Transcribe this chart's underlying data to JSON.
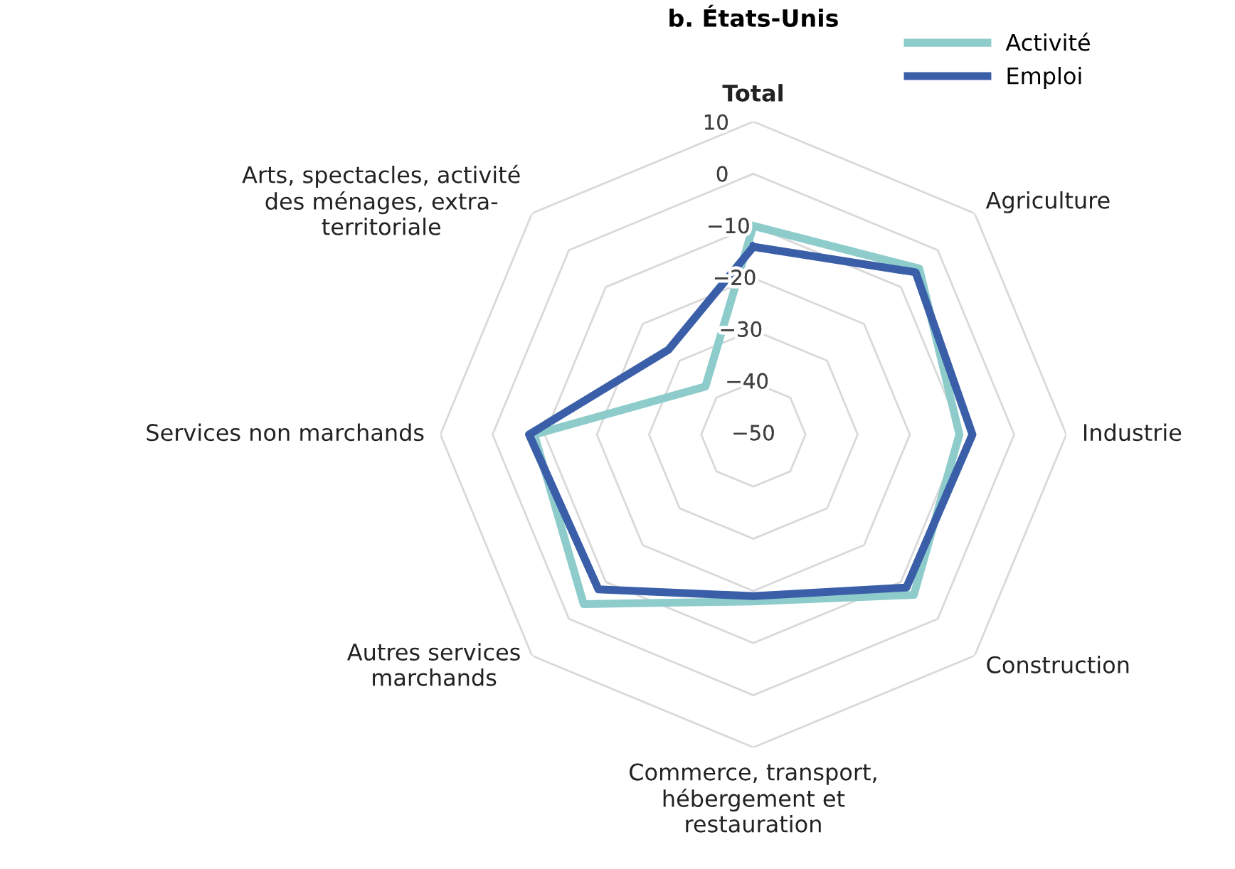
{
  "chart_data": {
    "type": "radar",
    "title": "b. États-Unis",
    "categories": [
      "Total",
      "Agriculture",
      "Industrie",
      "Construction",
      "Commerce, transport,\nhébergement et\nrestauration",
      "Autres services\nmarchands",
      "Services non marchands",
      "Arts, spectacles, activité\ndes ménages, extra-\nterritoriale"
    ],
    "series": [
      {
        "name": "Activité",
        "color": "#8ecccc",
        "values": [
          -10,
          -5,
          -10.5,
          -6.5,
          -18,
          -4,
          -8,
          -37
        ]
      },
      {
        "name": "Emploi",
        "color": "#3a5fa8",
        "values": [
          -14,
          -6,
          -8,
          -8.5,
          -19,
          -8,
          -7,
          -27
        ]
      }
    ],
    "ylim": [
      -50,
      10
    ],
    "yticks": [
      10,
      0,
      -10,
      -20,
      -30,
      -40,
      -50
    ],
    "grid": true,
    "legend": "top right",
    "line_style": "solid",
    "marker": "none"
  }
}
